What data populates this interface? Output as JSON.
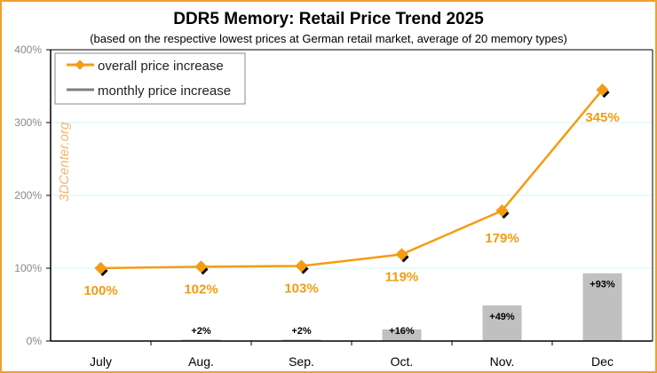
{
  "chart_data": {
    "type": "line+bar",
    "title": "DDR5 Memory: Retail Price Trend 2025",
    "subtitle": "(based on the respective lowest prices at German retail market, average of 20 memory types)",
    "categories": [
      "July",
      "Aug.",
      "Sep.",
      "Oct.",
      "Nov.",
      "Dec"
    ],
    "ylim": [
      0,
      400
    ],
    "yticks": [
      "0%",
      "100%",
      "200%",
      "300%",
      "400%"
    ],
    "grid": true,
    "legend_position": "top-left",
    "watermark": "3DCenter.org",
    "series": [
      {
        "name": "overall price increase",
        "type": "line",
        "color": "#f39c12",
        "values": [
          100,
          102,
          103,
          119,
          179,
          345
        ],
        "labels": [
          "100%",
          "102%",
          "103%",
          "119%",
          "179%",
          "345%"
        ]
      },
      {
        "name": "monthly price increase",
        "type": "bar",
        "color": "#c0c0c0",
        "values": [
          0,
          2,
          2,
          16,
          49,
          93
        ],
        "labels": [
          "",
          "+2%",
          "+2%",
          "+16%",
          "+49%",
          "+93%"
        ]
      }
    ]
  }
}
